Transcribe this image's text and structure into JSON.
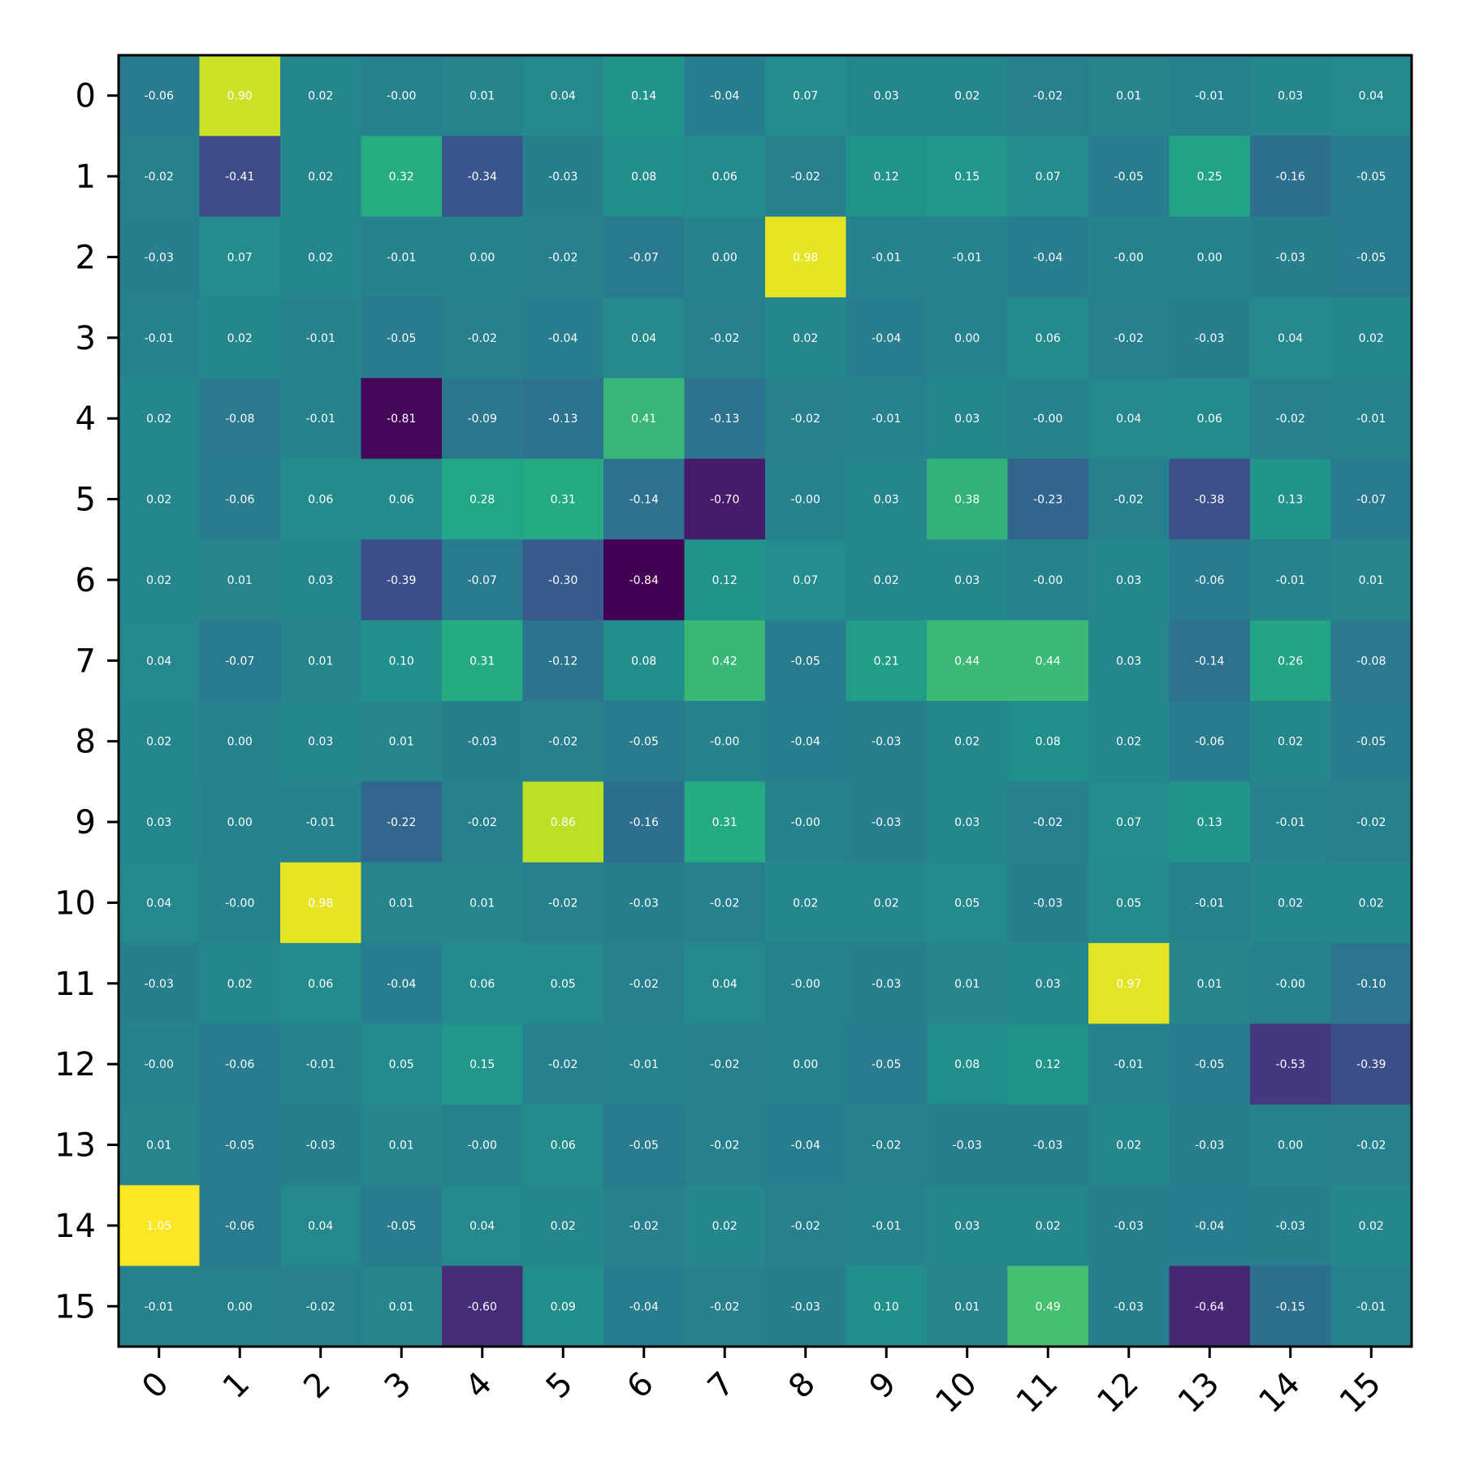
{
  "chart_data": {
    "type": "heatmap",
    "title": "",
    "xlabel": "",
    "ylabel": "",
    "colormap": "viridis",
    "vmin": -0.84,
    "vmax": 1.05,
    "x_tick_labels": [
      "0",
      "1",
      "2",
      "3",
      "4",
      "5",
      "6",
      "7",
      "8",
      "9",
      "10",
      "11",
      "12",
      "13",
      "14",
      "15"
    ],
    "y_tick_labels": [
      "0",
      "1",
      "2",
      "3",
      "4",
      "5",
      "6",
      "7",
      "8",
      "9",
      "10",
      "11",
      "12",
      "13",
      "14",
      "15"
    ],
    "x_tick_rotation_deg": 45,
    "annotations": true,
    "annotation_color": "#ffffff",
    "values": [
      [
        -0.06,
        0.9,
        0.02,
        -0.0,
        0.01,
        0.04,
        0.14,
        -0.04,
        0.07,
        0.03,
        0.02,
        -0.02,
        0.01,
        -0.01,
        0.03,
        0.04
      ],
      [
        -0.02,
        -0.41,
        0.02,
        0.32,
        -0.34,
        -0.03,
        0.08,
        0.06,
        -0.02,
        0.12,
        0.15,
        0.07,
        -0.05,
        0.25,
        -0.16,
        -0.05
      ],
      [
        -0.03,
        0.07,
        0.02,
        -0.01,
        0.0,
        -0.02,
        -0.07,
        0.0,
        0.98,
        -0.01,
        -0.01,
        -0.04,
        -0.0,
        0.0,
        -0.03,
        -0.05
      ],
      [
        -0.01,
        0.02,
        -0.01,
        -0.05,
        -0.02,
        -0.04,
        0.04,
        -0.02,
        0.02,
        -0.04,
        0.0,
        0.06,
        -0.02,
        -0.03,
        0.04,
        0.02
      ],
      [
        0.02,
        -0.08,
        -0.01,
        -0.81,
        -0.09,
        -0.13,
        0.41,
        -0.13,
        -0.02,
        -0.01,
        0.03,
        -0.0,
        0.04,
        0.06,
        -0.02,
        -0.01
      ],
      [
        0.02,
        -0.06,
        0.06,
        0.06,
        0.28,
        0.31,
        -0.14,
        -0.7,
        -0.0,
        0.03,
        0.38,
        -0.23,
        -0.02,
        -0.38,
        0.13,
        -0.07
      ],
      [
        0.02,
        0.01,
        0.03,
        -0.39,
        -0.07,
        -0.3,
        -0.84,
        0.12,
        0.07,
        0.02,
        0.03,
        -0.0,
        0.03,
        -0.06,
        -0.01,
        0.01
      ],
      [
        0.04,
        -0.07,
        0.01,
        0.1,
        0.31,
        -0.12,
        0.08,
        0.42,
        -0.05,
        0.21,
        0.44,
        0.44,
        0.03,
        -0.14,
        0.26,
        -0.08
      ],
      [
        0.02,
        0.0,
        0.03,
        0.01,
        -0.03,
        -0.02,
        -0.05,
        -0.0,
        -0.04,
        -0.03,
        0.02,
        0.08,
        0.02,
        -0.06,
        0.02,
        -0.05
      ],
      [
        0.03,
        0.0,
        -0.01,
        -0.22,
        -0.02,
        0.86,
        -0.16,
        0.31,
        -0.0,
        -0.03,
        0.03,
        -0.02,
        0.07,
        0.13,
        -0.01,
        -0.02
      ],
      [
        0.04,
        -0.0,
        0.98,
        0.01,
        0.01,
        -0.02,
        -0.03,
        -0.02,
        0.02,
        0.02,
        0.05,
        -0.03,
        0.05,
        -0.01,
        0.02,
        0.02
      ],
      [
        -0.03,
        0.02,
        0.06,
        -0.04,
        0.06,
        0.05,
        -0.02,
        0.04,
        -0.0,
        -0.03,
        0.01,
        0.03,
        0.97,
        0.01,
        -0.0,
        -0.1
      ],
      [
        -0.0,
        -0.06,
        -0.01,
        0.05,
        0.15,
        -0.02,
        -0.01,
        -0.02,
        0.0,
        -0.05,
        0.08,
        0.12,
        -0.01,
        -0.05,
        -0.53,
        -0.39
      ],
      [
        0.01,
        -0.05,
        -0.03,
        0.01,
        -0.0,
        0.06,
        -0.05,
        -0.02,
        -0.04,
        -0.02,
        -0.03,
        -0.03,
        0.02,
        -0.03,
        0.0,
        -0.02
      ],
      [
        1.05,
        -0.06,
        0.04,
        -0.05,
        0.04,
        0.02,
        -0.02,
        0.02,
        -0.02,
        -0.01,
        0.03,
        0.02,
        -0.03,
        -0.04,
        -0.03,
        0.02
      ],
      [
        -0.01,
        0.0,
        -0.02,
        0.01,
        -0.6,
        0.09,
        -0.04,
        -0.02,
        -0.03,
        0.1,
        0.01,
        0.49,
        -0.03,
        -0.64,
        -0.15,
        -0.01
      ]
    ],
    "annotation_text": [
      [
        "-0.06",
        "0.90",
        "0.02",
        "-0.00",
        "0.01",
        "0.04",
        "0.14",
        "-0.04",
        "0.07",
        "0.03",
        "0.02",
        "-0.02",
        "0.01",
        "-0.01",
        "0.03",
        "0.04"
      ],
      [
        "-0.02",
        "-0.41",
        "0.02",
        "0.32",
        "-0.34",
        "-0.03",
        "0.08",
        "0.06",
        "-0.02",
        "0.12",
        "0.15",
        "0.07",
        "-0.05",
        "0.25",
        "-0.16",
        "-0.05"
      ],
      [
        "-0.03",
        "0.07",
        "0.02",
        "-0.01",
        "0.00",
        "-0.02",
        "-0.07",
        "0.00",
        "0.98",
        "-0.01",
        "-0.01",
        "-0.04",
        "-0.00",
        "0.00",
        "-0.03",
        "-0.05"
      ],
      [
        "-0.01",
        "0.02",
        "-0.01",
        "-0.05",
        "-0.02",
        "-0.04",
        "0.04",
        "-0.02",
        "0.02",
        "-0.04",
        "0.00",
        "0.06",
        "-0.02",
        "-0.03",
        "0.04",
        "0.02"
      ],
      [
        "0.02",
        "-0.08",
        "-0.01",
        "-0.81",
        "-0.09",
        "-0.13",
        "0.41",
        "-0.13",
        "-0.02",
        "-0.01",
        "0.03",
        "-0.00",
        "0.04",
        "0.06",
        "-0.02",
        "-0.01"
      ],
      [
        "0.02",
        "-0.06",
        "0.06",
        "0.06",
        "0.28",
        "0.31",
        "-0.14",
        "-0.70",
        "-0.00",
        "0.03",
        "0.38",
        "-0.23",
        "-0.02",
        "-0.38",
        "0.13",
        "-0.07"
      ],
      [
        "0.02",
        "0.01",
        "0.03",
        "-0.39",
        "-0.07",
        "-0.30",
        "-0.84",
        "0.12",
        "0.07",
        "0.02",
        "0.03",
        "-0.00",
        "0.03",
        "-0.06",
        "-0.01",
        "0.01"
      ],
      [
        "0.04",
        "-0.07",
        "0.01",
        "0.10",
        "0.31",
        "-0.12",
        "0.08",
        "0.42",
        "-0.05",
        "0.21",
        "0.44",
        "0.44",
        "0.03",
        "-0.14",
        "0.26",
        "-0.08"
      ],
      [
        "0.02",
        "0.00",
        "0.03",
        "0.01",
        "-0.03",
        "-0.02",
        "-0.05",
        "-0.00",
        "-0.04",
        "-0.03",
        "0.02",
        "0.08",
        "0.02",
        "-0.06",
        "0.02",
        "-0.05"
      ],
      [
        "0.03",
        "0.00",
        "-0.01",
        "-0.22",
        "-0.02",
        "0.86",
        "-0.16",
        "0.31",
        "-0.00",
        "-0.03",
        "0.03",
        "-0.02",
        "0.07",
        "0.13",
        "-0.01",
        "-0.02"
      ],
      [
        "0.04",
        "-0.00",
        "0.98",
        "0.01",
        "0.01",
        "-0.02",
        "-0.03",
        "-0.02",
        "0.02",
        "0.02",
        "0.05",
        "-0.03",
        "0.05",
        "-0.01",
        "0.02",
        "0.02"
      ],
      [
        "-0.03",
        "0.02",
        "0.06",
        "-0.04",
        "0.06",
        "0.05",
        "-0.02",
        "0.04",
        "-0.00",
        "-0.03",
        "0.01",
        "0.03",
        "0.97",
        "0.01",
        "-0.00",
        "-0.10"
      ],
      [
        "-0.00",
        "-0.06",
        "-0.01",
        "0.05",
        "0.15",
        "-0.02",
        "-0.01",
        "-0.02",
        "0.00",
        "-0.05",
        "0.08",
        "0.12",
        "-0.01",
        "-0.05",
        "-0.53",
        "-0.39"
      ],
      [
        "0.01",
        "-0.05",
        "-0.03",
        "0.01",
        "-0.00",
        "0.06",
        "-0.05",
        "-0.02",
        "-0.04",
        "-0.02",
        "-0.03",
        "-0.03",
        "0.02",
        "-0.03",
        "0.00",
        "-0.02"
      ],
      [
        "1.05",
        "-0.06",
        "0.04",
        "-0.05",
        "0.04",
        "0.02",
        "-0.02",
        "0.02",
        "-0.02",
        "-0.01",
        "0.03",
        "0.02",
        "-0.03",
        "-0.04",
        "-0.03",
        "0.02"
      ],
      [
        "-0.01",
        "0.00",
        "-0.02",
        "0.01",
        "-0.60",
        "0.09",
        "-0.04",
        "-0.02",
        "-0.03",
        "0.10",
        "0.01",
        "0.49",
        "-0.03",
        "-0.64",
        "-0.15",
        "-0.01"
      ]
    ]
  }
}
